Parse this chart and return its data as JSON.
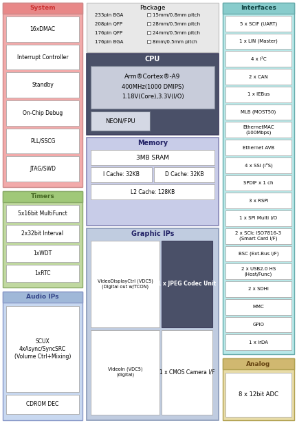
{
  "bg_color": "#ffffff",
  "system_color": "#f2aaaa",
  "system_header_color": "#e88888",
  "timers_color": "#c0d8a0",
  "timers_header_color": "#a0c878",
  "audio_color": "#c8d8f0",
  "audio_header_color": "#a0b8d8",
  "interfaces_color": "#b8e8e8",
  "interfaces_header_color": "#88cccc",
  "analog_color": "#e8dca8",
  "analog_header_color": "#d0b870",
  "cpu_bg_color": "#4a5068",
  "cpu_inner_color": "#c8ccda",
  "memory_color": "#c8cce8",
  "graphic_color": "#c0cce0",
  "package_color": "#e8e8e8",
  "white_box_color": "#ffffff",
  "neon_box_color": "#d4d8e4",
  "jpeg_dark_color": "#4a5068",
  "system_items": [
    "16xDMAC",
    "Interrupt Controller",
    "Standby",
    "On-Chip Debug",
    "PLL/SSCG",
    "JTAG/SWD"
  ],
  "timers_items": [
    "5x16bit MultiFunct",
    "2x32bit Interval",
    "1xWDT",
    "1xRTC"
  ],
  "interfaces_items": [
    "5 x SCIF (UART)",
    "1 x LIN (Master)",
    "4 x I²C",
    "2 x CAN",
    "1 x IEBus",
    "MLB (MOST50)",
    "EthernetMAC\n(100Mbps)",
    "Ethernet AVB",
    "4 x SSI (I²S)",
    "SPDIF x 1 ch",
    "3 x RSPI",
    "1 x SPI Multi I/O",
    "2 x SCIc ISO7816-3\n(Smart Card I/F)",
    "BSC (Ext.Bus I/F)",
    "2 x USB2.0 HS\n(Host/Func)",
    "2 x SDHI",
    "MMC",
    "GPIO",
    "1 x IrDA"
  ],
  "analog_items": [
    "8 x 12bit ADC"
  ],
  "package_pins": [
    "233pin BGA",
    "208pin QFP",
    "176pin QFP",
    "176pin BGA"
  ],
  "package_sizes": [
    "15mm/0.8mm pitch",
    "28mm/0.5mm pitch",
    "24mm/0.5mm pitch",
    "8mm/0.5mm pitch"
  ]
}
